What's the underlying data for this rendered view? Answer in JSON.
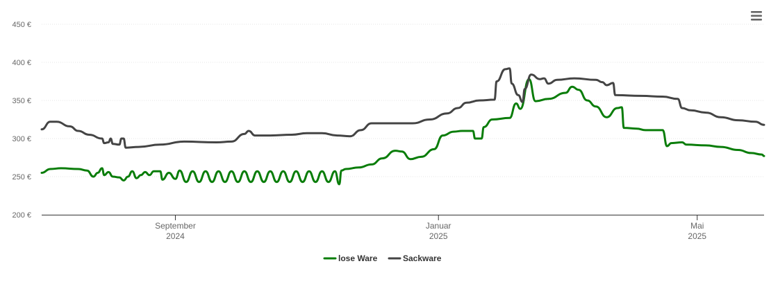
{
  "chart_data": {
    "type": "line",
    "title": "",
    "xlabel": "",
    "ylabel": "",
    "ylim": [
      200,
      450
    ],
    "y_ticks": [
      {
        "value": 200,
        "label": "200 €"
      },
      {
        "value": 250,
        "label": "250 €"
      },
      {
        "value": 300,
        "label": "300 €"
      },
      {
        "value": 350,
        "label": "350 €"
      },
      {
        "value": 400,
        "label": "400 €"
      },
      {
        "value": 450,
        "label": "450 €"
      }
    ],
    "xlim": [
      "2024-07-01",
      "2025-06-01"
    ],
    "x_ticks": [
      {
        "date": "2024-09-01",
        "line1": "September",
        "line2": "2024"
      },
      {
        "date": "2025-01-01",
        "line1": "Januar",
        "line2": "2025"
      },
      {
        "date": "2025-05-01",
        "line1": "Mai",
        "line2": "2025"
      }
    ],
    "grid": true,
    "legend_position": "bottom",
    "series": [
      {
        "name": "lose Ware",
        "color": "#0a7d0a",
        "points": [
          [
            "2024-07-01",
            255
          ],
          [
            "2024-07-05",
            260
          ],
          [
            "2024-07-10",
            261
          ],
          [
            "2024-07-18",
            260
          ],
          [
            "2024-07-22",
            258
          ],
          [
            "2024-07-25",
            250
          ],
          [
            "2024-07-27",
            255
          ],
          [
            "2024-07-29",
            261
          ],
          [
            "2024-07-30",
            252
          ],
          [
            "2024-08-01",
            256
          ],
          [
            "2024-08-03",
            250
          ],
          [
            "2024-08-06",
            249
          ],
          [
            "2024-08-08",
            245
          ],
          [
            "2024-08-10",
            250
          ],
          [
            "2024-08-12",
            257
          ],
          [
            "2024-08-14",
            248
          ],
          [
            "2024-08-16",
            252
          ],
          [
            "2024-08-18",
            256
          ],
          [
            "2024-08-20",
            252
          ],
          [
            "2024-08-22",
            257
          ],
          [
            "2024-08-25",
            257
          ],
          [
            "2024-08-26",
            246
          ],
          [
            "2024-08-29",
            255
          ],
          [
            "2024-09-01",
            247
          ],
          [
            "2024-09-03",
            258
          ],
          [
            "2024-09-06",
            243
          ],
          [
            "2024-09-09",
            257
          ],
          [
            "2024-09-12",
            243
          ],
          [
            "2024-09-15",
            257
          ],
          [
            "2024-09-18",
            243
          ],
          [
            "2024-09-21",
            257
          ],
          [
            "2024-09-24",
            243
          ],
          [
            "2024-09-27",
            257
          ],
          [
            "2024-09-30",
            243
          ],
          [
            "2024-10-03",
            257
          ],
          [
            "2024-10-06",
            243
          ],
          [
            "2024-10-09",
            257
          ],
          [
            "2024-10-12",
            243
          ],
          [
            "2024-10-15",
            257
          ],
          [
            "2024-10-18",
            243
          ],
          [
            "2024-10-21",
            257
          ],
          [
            "2024-10-24",
            243
          ],
          [
            "2024-10-27",
            257
          ],
          [
            "2024-10-30",
            243
          ],
          [
            "2024-11-02",
            257
          ],
          [
            "2024-11-05",
            243
          ],
          [
            "2024-11-08",
            257
          ],
          [
            "2024-11-11",
            243
          ],
          [
            "2024-11-14",
            257
          ],
          [
            "2024-11-16",
            240
          ],
          [
            "2024-11-17",
            258
          ],
          [
            "2024-11-19",
            260
          ],
          [
            "2024-11-25",
            262
          ],
          [
            "2024-12-01",
            266
          ],
          [
            "2024-12-06",
            274
          ],
          [
            "2024-12-12",
            284
          ],
          [
            "2024-12-15",
            283
          ],
          [
            "2024-12-19",
            273
          ],
          [
            "2024-12-24",
            276
          ],
          [
            "2024-12-30",
            286
          ],
          [
            "2025-01-03",
            304
          ],
          [
            "2025-01-08",
            309
          ],
          [
            "2025-01-12",
            310
          ],
          [
            "2025-01-17",
            310
          ],
          [
            "2025-01-18",
            300
          ],
          [
            "2025-01-21",
            300
          ],
          [
            "2025-01-22",
            315
          ],
          [
            "2025-01-26",
            325
          ],
          [
            "2025-02-03",
            327
          ],
          [
            "2025-02-06",
            346
          ],
          [
            "2025-02-08",
            339
          ],
          [
            "2025-02-12",
            378
          ],
          [
            "2025-02-15",
            349
          ],
          [
            "2025-02-21",
            352
          ],
          [
            "2025-03-01",
            360
          ],
          [
            "2025-03-04",
            368
          ],
          [
            "2025-03-07",
            364
          ],
          [
            "2025-03-11",
            350
          ],
          [
            "2025-03-15",
            342
          ],
          [
            "2025-03-20",
            328
          ],
          [
            "2025-03-25",
            340
          ],
          [
            "2025-03-27",
            341
          ],
          [
            "2025-03-28",
            314
          ],
          [
            "2025-04-03",
            313
          ],
          [
            "2025-04-07",
            311
          ],
          [
            "2025-04-15",
            311
          ],
          [
            "2025-04-17",
            290
          ],
          [
            "2025-04-19",
            294
          ],
          [
            "2025-04-24",
            295
          ],
          [
            "2025-04-26",
            292
          ],
          [
            "2025-05-05",
            291
          ],
          [
            "2025-05-12",
            289
          ],
          [
            "2025-05-20",
            285
          ],
          [
            "2025-05-26",
            281
          ],
          [
            "2025-05-31",
            279
          ],
          [
            "2025-06-01",
            277
          ]
        ]
      },
      {
        "name": "Sackware",
        "color": "#444444",
        "points": [
          [
            "2024-07-01",
            312
          ],
          [
            "2024-07-05",
            322
          ],
          [
            "2024-07-08",
            322
          ],
          [
            "2024-07-14",
            316
          ],
          [
            "2024-07-18",
            310
          ],
          [
            "2024-07-23",
            305
          ],
          [
            "2024-07-29",
            300
          ],
          [
            "2024-07-30",
            294
          ],
          [
            "2024-08-01",
            295
          ],
          [
            "2024-08-02",
            300
          ],
          [
            "2024-08-03",
            293
          ],
          [
            "2024-08-06",
            292
          ],
          [
            "2024-08-07",
            300
          ],
          [
            "2024-08-08",
            300
          ],
          [
            "2024-08-09",
            288
          ],
          [
            "2024-08-15",
            289
          ],
          [
            "2024-08-25",
            292
          ],
          [
            "2024-09-05",
            296
          ],
          [
            "2024-09-20",
            295
          ],
          [
            "2024-09-27",
            296
          ],
          [
            "2024-10-03",
            306
          ],
          [
            "2024-10-05",
            310
          ],
          [
            "2024-10-08",
            304
          ],
          [
            "2024-10-15",
            304
          ],
          [
            "2024-10-25",
            305
          ],
          [
            "2024-11-01",
            307
          ],
          [
            "2024-11-08",
            307
          ],
          [
            "2024-11-15",
            304
          ],
          [
            "2024-11-21",
            303
          ],
          [
            "2024-11-26",
            311
          ],
          [
            "2024-12-01",
            320
          ],
          [
            "2024-12-10",
            320
          ],
          [
            "2024-12-20",
            320
          ],
          [
            "2024-12-28",
            325
          ],
          [
            "2025-01-05",
            333
          ],
          [
            "2025-01-10",
            340
          ],
          [
            "2025-01-14",
            347
          ],
          [
            "2025-01-20",
            350
          ],
          [
            "2025-01-27",
            351
          ],
          [
            "2025-01-28",
            375
          ],
          [
            "2025-02-01",
            391
          ],
          [
            "2025-02-03",
            392
          ],
          [
            "2025-02-04",
            372
          ],
          [
            "2025-02-07",
            357
          ],
          [
            "2025-02-09",
            348
          ],
          [
            "2025-02-10",
            365
          ],
          [
            "2025-02-13",
            384
          ],
          [
            "2025-02-17",
            378
          ],
          [
            "2025-02-19",
            379
          ],
          [
            "2025-02-21",
            372
          ],
          [
            "2025-02-25",
            377
          ],
          [
            "2025-03-05",
            379
          ],
          [
            "2025-03-15",
            377
          ],
          [
            "2025-03-18",
            374
          ],
          [
            "2025-03-20",
            370
          ],
          [
            "2025-03-23",
            373
          ],
          [
            "2025-03-24",
            357
          ],
          [
            "2025-04-05",
            356
          ],
          [
            "2025-04-15",
            355
          ],
          [
            "2025-04-22",
            352
          ],
          [
            "2025-04-24",
            340
          ],
          [
            "2025-04-28",
            337
          ],
          [
            "2025-05-05",
            334
          ],
          [
            "2025-05-12",
            328
          ],
          [
            "2025-05-20",
            324
          ],
          [
            "2025-05-28",
            322
          ],
          [
            "2025-06-01",
            318
          ]
        ]
      }
    ]
  },
  "menu": {
    "icon": "hamburger-menu-icon"
  }
}
